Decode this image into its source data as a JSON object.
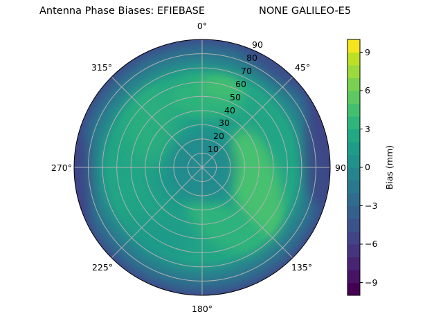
{
  "title": {
    "left": "Antenna Phase Biases: EFIEBASE",
    "right": "NONE GALILEO-E5"
  },
  "chart_data": {
    "type": "polar-contour",
    "title": "Antenna Phase Biases: EFIEBASE        NONE GALILEO-E5",
    "theta_direction": "clockwise",
    "theta_zero": "north",
    "theta_ticks": [
      "0°",
      "45°",
      "90",
      "135°",
      "180°",
      "225°",
      "270°",
      "315°"
    ],
    "r_ticks": [
      "10",
      "20",
      "30",
      "40",
      "50",
      "60",
      "70",
      "80",
      "90"
    ],
    "r_range": [
      0,
      90
    ],
    "colorbar": {
      "label": "Bias (mm)",
      "ticks": [
        "9",
        "6",
        "3",
        "0",
        "−3",
        "−6",
        "−9"
      ],
      "range": [
        -10,
        10
      ],
      "levels": 20,
      "colormap": "viridis",
      "colors": [
        "#440154",
        "#481769",
        "#472a7a",
        "#433d84",
        "#3d4e8a",
        "#355e8d",
        "#2e6d8e",
        "#297b8e",
        "#23898e",
        "#1f978b",
        "#21a585",
        "#2eb37c",
        "#46c06f",
        "#65cb5e",
        "#89d548",
        "#b0dd2f",
        "#d8e219",
        "#fde725",
        "#fde725",
        "#fde725"
      ]
    },
    "description": "Near center bias ~0 mm; ring of +3 to +5 mm at 30-60 deg zenith, strongest to the east/southeast (90-150 deg azimuth); edge (80-90 deg) falls to -3 to -6 mm, most negative in east and west.",
    "grid": true
  }
}
